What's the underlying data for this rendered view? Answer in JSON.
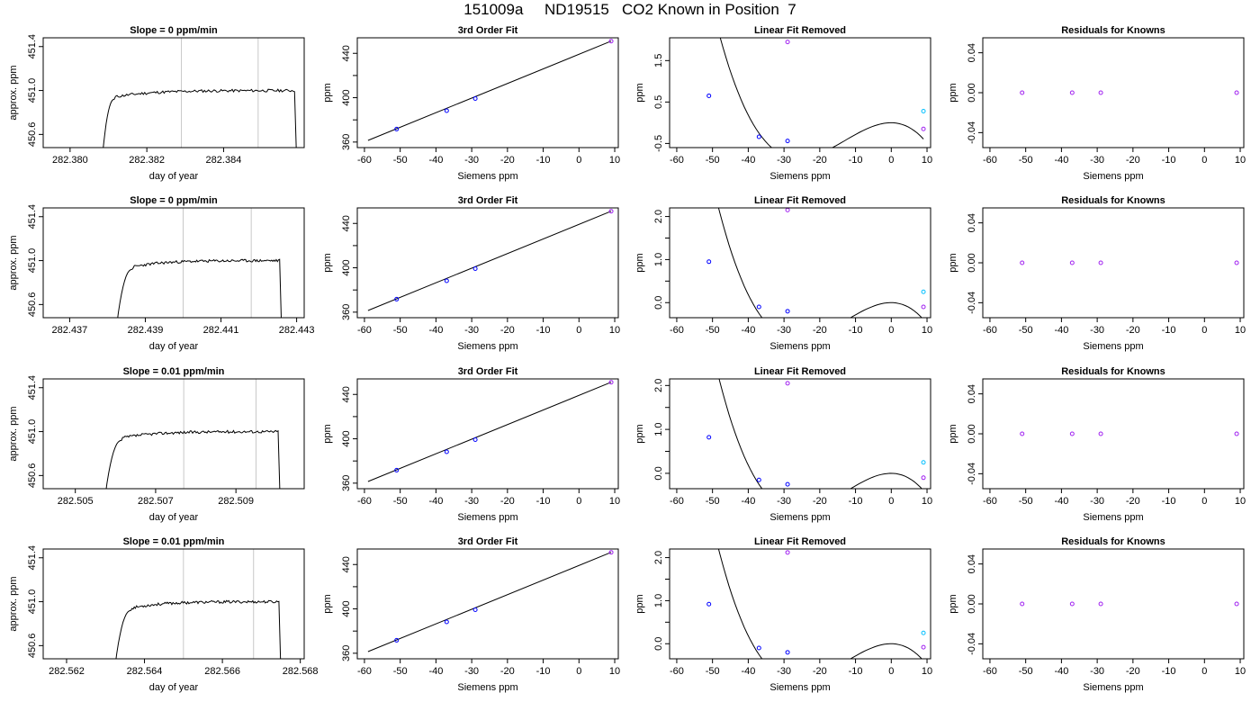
{
  "figure": {
    "title": "151009a     ND19515   CO2 Known in Position  7"
  },
  "chart_data": [
    {
      "type": "line",
      "title": "Slope =  0  ppm/min",
      "xlabel": "day of year",
      "ylabel": "approx. ppm",
      "xlim": [
        282.3793,
        282.3861
      ],
      "ylim": [
        450.48,
        451.48
      ],
      "xticks": [
        282.38,
        282.382,
        282.384
      ],
      "xticklabels": [
        "282.380",
        "282.382",
        "282.384"
      ],
      "yticks": [
        450.6,
        451.0,
        451.4
      ],
      "yticklabels": [
        "450.6",
        "451.0",
        "451.4"
      ],
      "vlines": [
        282.3829,
        282.3849
      ],
      "plateau": 451.0,
      "rise_start": 282.38085,
      "rise_end": 282.38115,
      "end_x": 282.38585,
      "drop_x": 282.3859,
      "seed": 11,
      "axis_color": "#000000",
      "line_color": "#000000",
      "vline_color": "#c8c8c8"
    },
    {
      "type": "scatter",
      "title": "3rd Order Fit",
      "xlabel": "Siemens ppm",
      "ylabel": "ppm",
      "xlim": [
        -62,
        11
      ],
      "ylim": [
        355,
        454
      ],
      "xticks": [
        -60,
        -50,
        -40,
        -30,
        -20,
        -10,
        0,
        10
      ],
      "xticklabels": [
        "-60",
        "-50",
        "-40",
        "-30",
        "-20",
        "-10",
        "0",
        "10"
      ],
      "yticks": [
        360,
        400,
        440
      ],
      "yticklabels": [
        "360",
        "400",
        "440"
      ],
      "minor_yticks": [
        380,
        420
      ],
      "points": [
        {
          "x": -51,
          "y": 371.7
        },
        {
          "x": -37,
          "y": 388.3
        },
        {
          "x": -29,
          "y": 399.2
        },
        {
          "x": 9,
          "y": 451.0
        }
      ],
      "fit_line": {
        "x": [
          -59,
          9
        ],
        "y": [
          361.5,
          451.0
        ]
      },
      "point_colors": [
        "#0000ff",
        "#0000ff",
        "#0000ff",
        "#a020f0"
      ],
      "line_color": "#000000"
    },
    {
      "type": "scatter",
      "title": "Linear Fit Removed",
      "xlabel": "Siemens ppm",
      "ylabel": "ppm",
      "xlim": [
        -62,
        11
      ],
      "ylim": [
        -0.6,
        2.05
      ],
      "xticks": [
        -60,
        -50,
        -40,
        -30,
        -20,
        -10,
        0,
        10
      ],
      "xticklabels": [
        "-60",
        "-50",
        "-40",
        "-30",
        "-20",
        "-10",
        "0",
        "10"
      ],
      "yticks": [
        -0.5,
        0.5,
        1.5
      ],
      "yticklabels": [
        "-0.5",
        "0.5",
        "1.5"
      ],
      "curve": {
        "x_range": [
          -59,
          9
        ],
        "cubic": [
          -0.0001,
          -0.0039,
          -0.0006,
          0.0
        ],
        "offset": 0.0
      },
      "points": [
        {
          "x": -51,
          "y": 0.65,
          "color": "#0000ff"
        },
        {
          "x": -37,
          "y": -0.34,
          "color": "#0000ff"
        },
        {
          "x": -29,
          "y": -0.44,
          "color": "#0000ff"
        },
        {
          "x": -29,
          "y": 1.95,
          "color": "#a020f0"
        },
        {
          "x": 9,
          "y": 0.28,
          "color": "#00bfff"
        },
        {
          "x": 9,
          "y": -0.15,
          "color": "#a020f0"
        }
      ],
      "line_color": "#000000"
    },
    {
      "type": "scatter",
      "title": "Residuals for Knowns",
      "xlabel": "Siemens ppm",
      "ylabel": "ppm",
      "xlim": [
        -62,
        11
      ],
      "ylim": [
        -0.055,
        0.055
      ],
      "xticks": [
        -60,
        -50,
        -40,
        -30,
        -20,
        -10,
        0,
        10
      ],
      "xticklabels": [
        "-60",
        "-50",
        "-40",
        "-30",
        "-20",
        "-10",
        "0",
        "10"
      ],
      "yticks": [
        -0.04,
        0.0,
        0.04
      ],
      "yticklabels": [
        "-0.04",
        "0.00",
        "0.04"
      ],
      "points": [
        {
          "x": -51,
          "y": 0.0
        },
        {
          "x": -37,
          "y": 0.0
        },
        {
          "x": -29,
          "y": 0.0
        },
        {
          "x": 9,
          "y": 0.0
        }
      ],
      "point_color": "#a020f0"
    },
    {
      "type": "line",
      "title": "Slope =  0  ppm/min",
      "xlabel": "day of year",
      "ylabel": "approx. ppm",
      "xlim": [
        282.4363,
        282.4432
      ],
      "ylim": [
        450.48,
        451.48
      ],
      "xticks": [
        282.437,
        282.439,
        282.441,
        282.443
      ],
      "xticklabels": [
        "282.437",
        "282.439",
        "282.441",
        "282.443"
      ],
      "yticks": [
        450.6,
        451.0,
        451.4
      ],
      "yticklabels": [
        "450.6",
        "451.0",
        "451.4"
      ],
      "vlines": [
        282.44,
        282.4418
      ],
      "plateau": 451.0,
      "rise_start": 282.43825,
      "rise_end": 282.43865,
      "end_x": 282.44255,
      "drop_x": 282.4426,
      "seed": 23,
      "axis_color": "#000000",
      "line_color": "#000000",
      "vline_color": "#c8c8c8"
    },
    {
      "type": "scatter",
      "title": "3rd Order Fit",
      "xlabel": "Siemens ppm",
      "ylabel": "ppm",
      "xlim": [
        -62,
        11
      ],
      "ylim": [
        355,
        454
      ],
      "xticks": [
        -60,
        -50,
        -40,
        -30,
        -20,
        -10,
        0,
        10
      ],
      "xticklabels": [
        "-60",
        "-50",
        "-40",
        "-30",
        "-20",
        "-10",
        "0",
        "10"
      ],
      "yticks": [
        360,
        400,
        440
      ],
      "yticklabels": [
        "360",
        "400",
        "440"
      ],
      "minor_yticks": [
        380,
        420
      ],
      "points": [
        {
          "x": -51,
          "y": 371.7
        },
        {
          "x": -37,
          "y": 388.3
        },
        {
          "x": -29,
          "y": 399.2
        },
        {
          "x": 9,
          "y": 451.0
        }
      ],
      "fit_line": {
        "x": [
          -59,
          9
        ],
        "y": [
          361.5,
          451.0
        ]
      },
      "point_colors": [
        "#0000ff",
        "#0000ff",
        "#0000ff",
        "#a020f0"
      ],
      "line_color": "#000000"
    },
    {
      "type": "scatter",
      "title": "Linear Fit Removed",
      "xlabel": "Siemens ppm",
      "ylabel": "ppm",
      "xlim": [
        -62,
        11
      ],
      "ylim": [
        -0.35,
        2.2
      ],
      "xticks": [
        -60,
        -50,
        -40,
        -30,
        -20,
        -10,
        0,
        10
      ],
      "xticklabels": [
        "-60",
        "-50",
        "-40",
        "-30",
        "-20",
        "-10",
        "0",
        "10"
      ],
      "yticks": [
        0.0,
        1.0,
        2.0
      ],
      "yticklabels": [
        "0.0",
        "1.0",
        "2.0"
      ],
      "minor_yticks": [
        0.5,
        1.5
      ],
      "curve": {
        "x_range": [
          -59,
          9
        ],
        "cubic": [
          -0.0001,
          -0.0039,
          -0.0006,
          0.0
        ],
        "offset": 0.0
      },
      "points": [
        {
          "x": -51,
          "y": 0.95,
          "color": "#0000ff"
        },
        {
          "x": -37,
          "y": -0.1,
          "color": "#0000ff"
        },
        {
          "x": -29,
          "y": -0.2,
          "color": "#0000ff"
        },
        {
          "x": -29,
          "y": 2.15,
          "color": "#a020f0"
        },
        {
          "x": 9,
          "y": 0.25,
          "color": "#00bfff"
        },
        {
          "x": 9,
          "y": -0.1,
          "color": "#a020f0"
        }
      ],
      "line_color": "#000000"
    },
    {
      "type": "scatter",
      "title": "Residuals for Knowns",
      "xlabel": "Siemens ppm",
      "ylabel": "ppm",
      "xlim": [
        -62,
        11
      ],
      "ylim": [
        -0.055,
        0.055
      ],
      "xticks": [
        -60,
        -50,
        -40,
        -30,
        -20,
        -10,
        0,
        10
      ],
      "xticklabels": [
        "-60",
        "-50",
        "-40",
        "-30",
        "-20",
        "-10",
        "0",
        "10"
      ],
      "yticks": [
        -0.04,
        0.0,
        0.04
      ],
      "yticklabels": [
        "-0.04",
        "0.00",
        "0.04"
      ],
      "points": [
        {
          "x": -51,
          "y": 0.0
        },
        {
          "x": -37,
          "y": 0.0
        },
        {
          "x": -29,
          "y": 0.0
        },
        {
          "x": 9,
          "y": 0.0
        }
      ],
      "point_color": "#a020f0"
    },
    {
      "type": "line",
      "title": "Slope =  0.01  ppm/min",
      "xlabel": "day of year",
      "ylabel": "approx. ppm",
      "xlim": [
        282.5042,
        282.5107
      ],
      "ylim": [
        450.48,
        451.48
      ],
      "xticks": [
        282.505,
        282.507,
        282.509
      ],
      "xticklabels": [
        "282.505",
        "282.507",
        "282.509"
      ],
      "yticks": [
        450.6,
        451.0,
        451.4
      ],
      "yticklabels": [
        "450.6",
        "451.0",
        "451.4"
      ],
      "vlines": [
        282.5077,
        282.5095
      ],
      "plateau": 451.0,
      "rise_start": 282.50575,
      "rise_end": 282.50615,
      "end_x": 282.51005,
      "drop_x": 282.5101,
      "seed": 37,
      "axis_color": "#000000",
      "line_color": "#000000",
      "vline_color": "#c8c8c8"
    },
    {
      "type": "scatter",
      "title": "3rd Order Fit",
      "xlabel": "Siemens ppm",
      "ylabel": "ppm",
      "xlim": [
        -62,
        11
      ],
      "ylim": [
        355,
        454
      ],
      "xticks": [
        -60,
        -50,
        -40,
        -30,
        -20,
        -10,
        0,
        10
      ],
      "xticklabels": [
        "-60",
        "-50",
        "-40",
        "-30",
        "-20",
        "-10",
        "0",
        "10"
      ],
      "yticks": [
        360,
        400,
        440
      ],
      "yticklabels": [
        "360",
        "400",
        "440"
      ],
      "minor_yticks": [
        380,
        420
      ],
      "points": [
        {
          "x": -51,
          "y": 371.7
        },
        {
          "x": -37,
          "y": 388.3
        },
        {
          "x": -29,
          "y": 399.2
        },
        {
          "x": 9,
          "y": 451.0
        }
      ],
      "fit_line": {
        "x": [
          -59,
          9
        ],
        "y": [
          361.5,
          451.0
        ]
      },
      "point_colors": [
        "#0000ff",
        "#0000ff",
        "#0000ff",
        "#a020f0"
      ],
      "line_color": "#000000"
    },
    {
      "type": "scatter",
      "title": "Linear Fit Removed",
      "xlabel": "Siemens ppm",
      "ylabel": "ppm",
      "xlim": [
        -62,
        11
      ],
      "ylim": [
        -0.35,
        2.15
      ],
      "xticks": [
        -60,
        -50,
        -40,
        -30,
        -20,
        -10,
        0,
        10
      ],
      "xticklabels": [
        "-60",
        "-50",
        "-40",
        "-30",
        "-20",
        "-10",
        "0",
        "10"
      ],
      "yticks": [
        0.0,
        1.0,
        2.0
      ],
      "yticklabels": [
        "0.0",
        "1.0",
        "2.0"
      ],
      "minor_yticks": [
        0.5,
        1.5
      ],
      "curve": {
        "x_range": [
          -59,
          9
        ],
        "cubic": [
          -0.0001,
          -0.0039,
          -0.0006,
          0.0
        ],
        "offset": 0.0
      },
      "points": [
        {
          "x": -51,
          "y": 0.82,
          "color": "#0000ff"
        },
        {
          "x": -37,
          "y": -0.15,
          "color": "#0000ff"
        },
        {
          "x": -29,
          "y": -0.25,
          "color": "#0000ff"
        },
        {
          "x": -29,
          "y": 2.05,
          "color": "#a020f0"
        },
        {
          "x": 9,
          "y": 0.25,
          "color": "#00bfff"
        },
        {
          "x": 9,
          "y": -0.1,
          "color": "#a020f0"
        }
      ],
      "line_color": "#000000"
    },
    {
      "type": "scatter",
      "title": "Residuals for Knowns",
      "xlabel": "Siemens ppm",
      "ylabel": "ppm",
      "xlim": [
        -62,
        11
      ],
      "ylim": [
        -0.055,
        0.055
      ],
      "xticks": [
        -60,
        -50,
        -40,
        -30,
        -20,
        -10,
        0,
        10
      ],
      "xticklabels": [
        "-60",
        "-50",
        "-40",
        "-30",
        "-20",
        "-10",
        "0",
        "10"
      ],
      "yticks": [
        -0.04,
        0.0,
        0.04
      ],
      "yticklabels": [
        "-0.04",
        "0.00",
        "0.04"
      ],
      "points": [
        {
          "x": -51,
          "y": 0.0
        },
        {
          "x": -37,
          "y": 0.0
        },
        {
          "x": -29,
          "y": 0.0
        },
        {
          "x": 9,
          "y": 0.0
        }
      ],
      "point_color": "#a020f0"
    },
    {
      "type": "line",
      "title": "Slope =  0.01  ppm/min",
      "xlabel": "day of year",
      "ylabel": "approx. ppm",
      "xlim": [
        282.5614,
        282.5681
      ],
      "ylim": [
        450.48,
        451.48
      ],
      "xticks": [
        282.562,
        282.564,
        282.566,
        282.568
      ],
      "xticklabels": [
        "282.562",
        "282.564",
        "282.566",
        "282.568"
      ],
      "yticks": [
        450.6,
        451.0,
        451.4
      ],
      "yticklabels": [
        "450.6",
        "451.0",
        "451.4"
      ],
      "vlines": [
        282.565,
        282.5668
      ],
      "plateau": 451.0,
      "rise_start": 282.56325,
      "rise_end": 282.56365,
      "end_x": 282.56745,
      "drop_x": 282.5675,
      "seed": 53,
      "axis_color": "#000000",
      "line_color": "#000000",
      "vline_color": "#c8c8c8"
    },
    {
      "type": "scatter",
      "title": "3rd Order Fit",
      "xlabel": "Siemens ppm",
      "ylabel": "ppm",
      "xlim": [
        -62,
        11
      ],
      "ylim": [
        355,
        454
      ],
      "xticks": [
        -60,
        -50,
        -40,
        -30,
        -20,
        -10,
        0,
        10
      ],
      "xticklabels": [
        "-60",
        "-50",
        "-40",
        "-30",
        "-20",
        "-10",
        "0",
        "10"
      ],
      "yticks": [
        360,
        400,
        440
      ],
      "yticklabels": [
        "360",
        "400",
        "440"
      ],
      "minor_yticks": [
        380,
        420
      ],
      "points": [
        {
          "x": -51,
          "y": 371.7
        },
        {
          "x": -37,
          "y": 388.3
        },
        {
          "x": -29,
          "y": 399.2
        },
        {
          "x": 9,
          "y": 451.0
        }
      ],
      "fit_line": {
        "x": [
          -59,
          9
        ],
        "y": [
          361.5,
          451.0
        ]
      },
      "point_colors": [
        "#0000ff",
        "#0000ff",
        "#0000ff",
        "#a020f0"
      ],
      "line_color": "#000000"
    },
    {
      "type": "scatter",
      "title": "Linear Fit Removed",
      "xlabel": "Siemens ppm",
      "ylabel": "ppm",
      "xlim": [
        -62,
        11
      ],
      "ylim": [
        -0.35,
        2.2
      ],
      "xticks": [
        -60,
        -50,
        -40,
        -30,
        -20,
        -10,
        0,
        10
      ],
      "xticklabels": [
        "-60",
        "-50",
        "-40",
        "-30",
        "-20",
        "-10",
        "0",
        "10"
      ],
      "yticks": [
        0.0,
        1.0,
        2.0
      ],
      "yticklabels": [
        "0.0",
        "1.0",
        "2.0"
      ],
      "minor_yticks": [
        0.5,
        1.5
      ],
      "curve": {
        "x_range": [
          -59,
          9
        ],
        "cubic": [
          -0.0001,
          -0.0039,
          -0.0006,
          0.0
        ],
        "offset": 0.0
      },
      "points": [
        {
          "x": -51,
          "y": 0.92,
          "color": "#0000ff"
        },
        {
          "x": -37,
          "y": -0.1,
          "color": "#0000ff"
        },
        {
          "x": -29,
          "y": -0.2,
          "color": "#0000ff"
        },
        {
          "x": -29,
          "y": 2.12,
          "color": "#a020f0"
        },
        {
          "x": 9,
          "y": 0.25,
          "color": "#00bfff"
        },
        {
          "x": 9,
          "y": -0.08,
          "color": "#a020f0"
        }
      ],
      "line_color": "#000000"
    },
    {
      "type": "scatter",
      "title": "Residuals for Knowns",
      "xlabel": "Siemens ppm",
      "ylabel": "ppm",
      "xlim": [
        -62,
        11
      ],
      "ylim": [
        -0.055,
        0.055
      ],
      "xticks": [
        -60,
        -50,
        -40,
        -30,
        -20,
        -10,
        0,
        10
      ],
      "xticklabels": [
        "-60",
        "-50",
        "-40",
        "-30",
        "-20",
        "-10",
        "0",
        "10"
      ],
      "yticks": [
        -0.04,
        0.0,
        0.04
      ],
      "yticklabels": [
        "-0.04",
        "0.00",
        "0.04"
      ],
      "points": [
        {
          "x": -51,
          "y": 0.0
        },
        {
          "x": -37,
          "y": 0.0
        },
        {
          "x": -29,
          "y": 0.0
        },
        {
          "x": 9,
          "y": 0.0
        }
      ],
      "point_color": "#a020f0"
    }
  ]
}
